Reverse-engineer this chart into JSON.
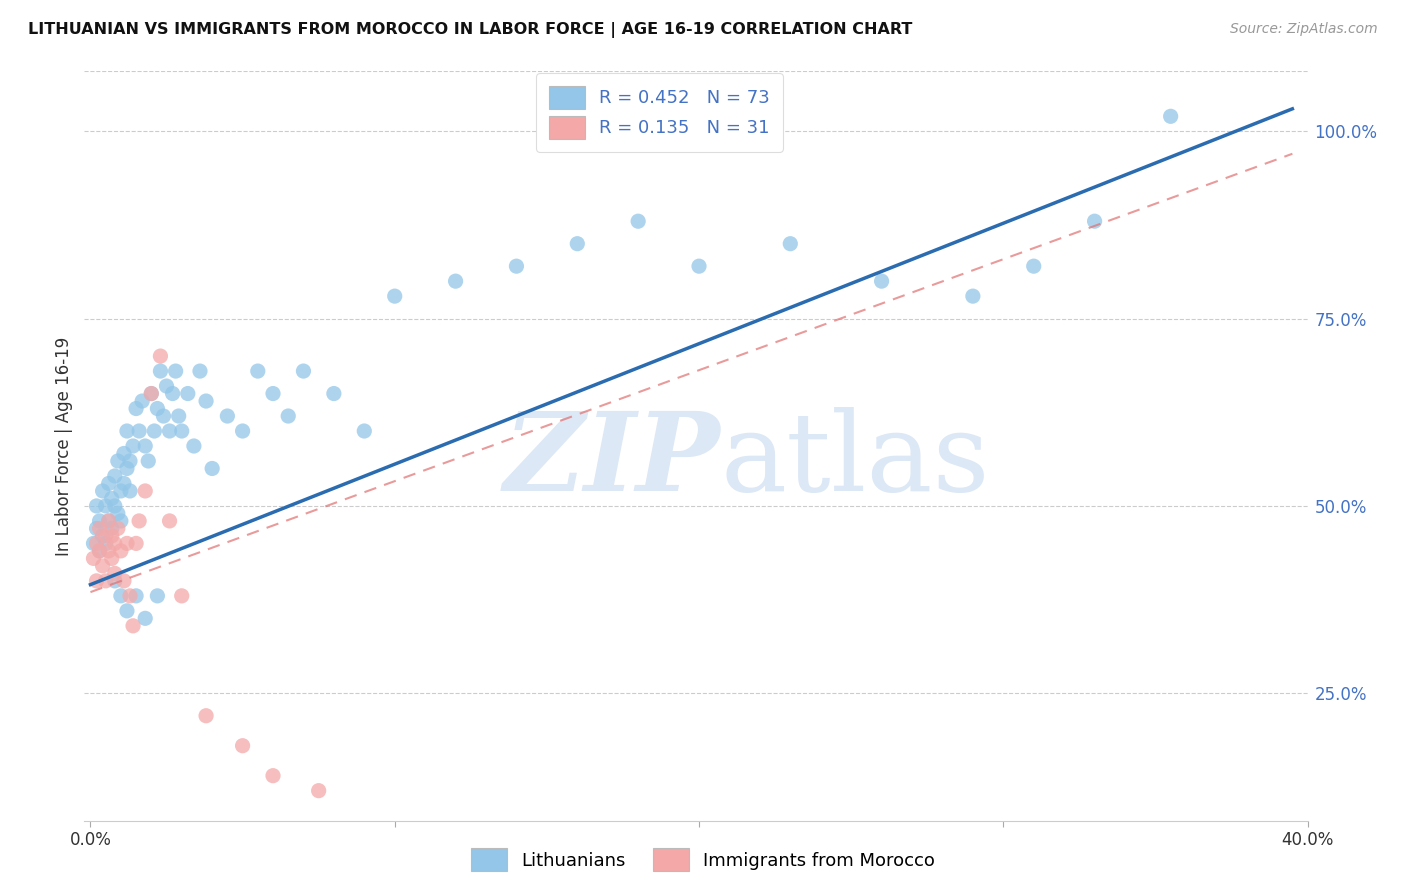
{
  "title": "LITHUANIAN VS IMMIGRANTS FROM MOROCCO IN LABOR FORCE | AGE 16-19 CORRELATION CHART",
  "source": "Source: ZipAtlas.com",
  "ylabel": "In Labor Force | Age 16-19",
  "xlim": [
    -0.002,
    0.4
  ],
  "ylim": [
    0.08,
    1.08
  ],
  "yticks": [
    0.25,
    0.5,
    0.75,
    1.0
  ],
  "ytick_labels": [
    "25.0%",
    "50.0%",
    "75.0%",
    "100.0%"
  ],
  "xtick_positions": [
    0.0,
    0.1,
    0.2,
    0.3,
    0.4
  ],
  "xtick_labels": [
    "0.0%",
    "",
    "",
    "",
    "40.0%"
  ],
  "blue_color": "#93c6e8",
  "pink_color": "#f4a8a8",
  "blue_line_color": "#2b6cb0",
  "pink_line_color": "#e05a5a",
  "pink_line_dash_color": "#e07070",
  "label_color": "#4472c4",
  "R_blue": 0.452,
  "N_blue": 73,
  "R_pink": 0.135,
  "N_pink": 31,
  "blue_trend_x0": 0.0,
  "blue_trend_y0": 0.395,
  "blue_trend_x1": 0.395,
  "blue_trend_y1": 1.03,
  "pink_trend_x0": 0.0,
  "pink_trend_y0": 0.385,
  "pink_trend_x1": 0.395,
  "pink_trend_y1": 0.97,
  "blue_x": [
    0.001,
    0.002,
    0.002,
    0.003,
    0.003,
    0.004,
    0.004,
    0.005,
    0.005,
    0.006,
    0.006,
    0.007,
    0.007,
    0.008,
    0.008,
    0.009,
    0.009,
    0.01,
    0.01,
    0.011,
    0.011,
    0.012,
    0.012,
    0.013,
    0.013,
    0.014,
    0.015,
    0.016,
    0.017,
    0.018,
    0.019,
    0.02,
    0.021,
    0.022,
    0.023,
    0.024,
    0.025,
    0.026,
    0.027,
    0.028,
    0.029,
    0.03,
    0.032,
    0.034,
    0.036,
    0.038,
    0.04,
    0.045,
    0.05,
    0.055,
    0.06,
    0.065,
    0.07,
    0.08,
    0.09,
    0.1,
    0.12,
    0.14,
    0.16,
    0.18,
    0.2,
    0.23,
    0.26,
    0.29,
    0.31,
    0.33,
    0.355,
    0.008,
    0.01,
    0.012,
    0.015,
    0.018,
    0.022
  ],
  "blue_y": [
    0.45,
    0.47,
    0.5,
    0.44,
    0.48,
    0.46,
    0.52,
    0.45,
    0.5,
    0.48,
    0.53,
    0.47,
    0.51,
    0.5,
    0.54,
    0.49,
    0.56,
    0.52,
    0.48,
    0.57,
    0.53,
    0.55,
    0.6,
    0.56,
    0.52,
    0.58,
    0.63,
    0.6,
    0.64,
    0.58,
    0.56,
    0.65,
    0.6,
    0.63,
    0.68,
    0.62,
    0.66,
    0.6,
    0.65,
    0.68,
    0.62,
    0.6,
    0.65,
    0.58,
    0.68,
    0.64,
    0.55,
    0.62,
    0.6,
    0.68,
    0.65,
    0.62,
    0.68,
    0.65,
    0.6,
    0.78,
    0.8,
    0.82,
    0.85,
    0.88,
    0.82,
    0.85,
    0.8,
    0.78,
    0.82,
    0.88,
    1.02,
    0.4,
    0.38,
    0.36,
    0.38,
    0.35,
    0.38
  ],
  "pink_x": [
    0.001,
    0.002,
    0.002,
    0.003,
    0.003,
    0.004,
    0.005,
    0.005,
    0.006,
    0.006,
    0.007,
    0.007,
    0.008,
    0.008,
    0.009,
    0.01,
    0.011,
    0.012,
    0.013,
    0.014,
    0.015,
    0.016,
    0.018,
    0.02,
    0.023,
    0.026,
    0.03,
    0.038,
    0.05,
    0.06,
    0.075
  ],
  "pink_y": [
    0.43,
    0.45,
    0.4,
    0.44,
    0.47,
    0.42,
    0.46,
    0.4,
    0.44,
    0.48,
    0.43,
    0.46,
    0.45,
    0.41,
    0.47,
    0.44,
    0.4,
    0.45,
    0.38,
    0.34,
    0.45,
    0.48,
    0.52,
    0.65,
    0.7,
    0.48,
    0.38,
    0.22,
    0.18,
    0.14,
    0.12
  ]
}
